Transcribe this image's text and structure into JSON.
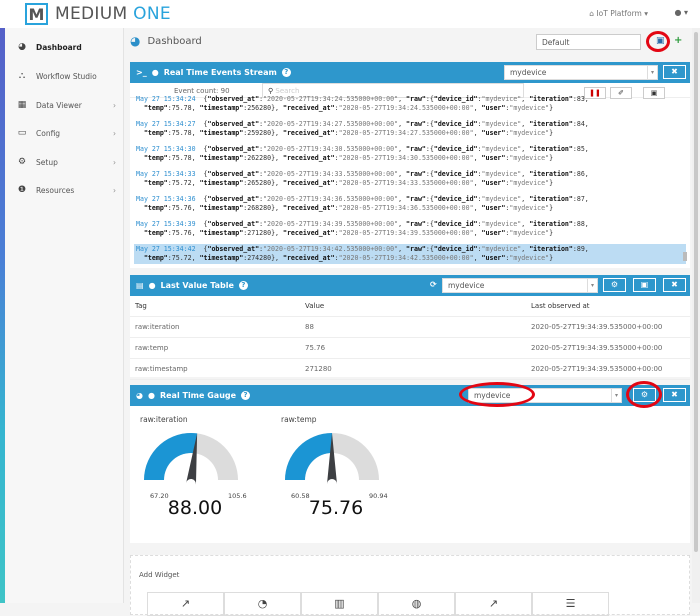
{
  "brand": {
    "logo_letter": "M",
    "name_a": "MEDIUM",
    "name_b": "ONE"
  },
  "topbar": {
    "platform": "IoT Platform",
    "platform_caret": "▾",
    "user_icon": "user-icon",
    "user_caret": "▾"
  },
  "sidebar": {
    "items": [
      {
        "label": "Dashboard",
        "icon": "dashboard-icon",
        "glyph": "◕",
        "chevron": ""
      },
      {
        "label": "Workflow Studio",
        "icon": "sitemap-icon",
        "glyph": "⛬",
        "chevron": ""
      },
      {
        "label": "Data Viewer",
        "icon": "table-icon",
        "glyph": "▦",
        "chevron": "›"
      },
      {
        "label": "Config",
        "icon": "monitor-icon",
        "glyph": "▭",
        "chevron": "›"
      },
      {
        "label": "Setup",
        "icon": "gears-icon",
        "glyph": "⚙",
        "chevron": "›"
      },
      {
        "label": "Resources",
        "icon": "info-icon",
        "glyph": "❶",
        "chevron": "›"
      }
    ]
  },
  "header": {
    "title": "Dashboard",
    "dashboard_select": "Default",
    "save_icon": "💾",
    "add_icon": "+"
  },
  "events_panel": {
    "title": "Real Time Events Stream",
    "device": "mydevice",
    "close": "✖",
    "event_count": "Event count: 90",
    "search_placeholder": "Search",
    "pause": "❚❚",
    "clear": "✐",
    "save": "▣",
    "events": [
      {
        "ts": "May 27 15:34:24",
        "obs": "2020-05-27T19:34:24.535000+00:00",
        "iter": "83",
        "temp": "75.78",
        "stamp": "256280",
        "rec": "2020-05-27T19:34:24.535000+00:00"
      },
      {
        "ts": "May 27 15:34:27",
        "obs": "2020-05-27T19:34:27.535000+00:00",
        "iter": "84",
        "temp": "75.78",
        "stamp": "259280",
        "rec": "2020-05-27T19:34:27.535000+00:00"
      },
      {
        "ts": "May 27 15:34:30",
        "obs": "2020-05-27T19:34:30.535000+00:00",
        "iter": "85",
        "temp": "75.78",
        "stamp": "262280",
        "rec": "2020-05-27T19:34:30.535000+00:00"
      },
      {
        "ts": "May 27 15:34:33",
        "obs": "2020-05-27T19:34:33.535000+00:00",
        "iter": "86",
        "temp": "75.72",
        "stamp": "265280",
        "rec": "2020-05-27T19:34:33.535000+00:00"
      },
      {
        "ts": "May 27 15:34:36",
        "obs": "2020-05-27T19:34:36.535000+00:00",
        "iter": "87",
        "temp": "75.76",
        "stamp": "268280",
        "rec": "2020-05-27T19:34:36.535000+00:00"
      },
      {
        "ts": "May 27 15:34:39",
        "obs": "2020-05-27T19:34:39.535000+00:00",
        "iter": "88",
        "temp": "75.76",
        "stamp": "271280",
        "rec": "2020-05-27T19:34:39.535000+00:00"
      },
      {
        "ts": "May 27 15:34:42",
        "obs": "2020-05-27T19:34:42.535000+00:00",
        "iter": "89",
        "temp": "75.72",
        "stamp": "274280",
        "rec": "2020-05-27T19:34:42.535000+00:00"
      }
    ],
    "device_id": "mydevice",
    "user": "mydevice"
  },
  "table_panel": {
    "title": "Last Value Table",
    "device": "mydevice",
    "headers": [
      "Tag",
      "Value",
      "Last observed at"
    ],
    "rows": [
      [
        "raw:iteration",
        "88",
        "2020-05-27T19:34:39.535000+00:00"
      ],
      [
        "raw:temp",
        "75.76",
        "2020-05-27T19:34:39.535000+00:00"
      ],
      [
        "raw:timestamp",
        "271280",
        "2020-05-27T19:34:39.535000+00:00"
      ]
    ]
  },
  "gauge_panel": {
    "title": "Real Time Gauge",
    "device": "mydevice",
    "gauges": [
      {
        "label": "raw:iteration",
        "min": "67.20",
        "max": "105.6",
        "value": "88.00"
      },
      {
        "label": "raw:temp",
        "min": "60.58",
        "max": "90.94",
        "value": "75.76"
      }
    ]
  },
  "add_widget": {
    "title": "Add Widget",
    "icons": [
      "line-chart-icon",
      "pie-chart-icon",
      "bar-chart-icon",
      "globe-icon",
      "line-chart-icon",
      "list-icon"
    ]
  },
  "colors": {
    "accent": "#2e97cc",
    "gauge_fill": "#1b95d4",
    "gauge_bg": "#dcdcdc",
    "annotation": "#e30613"
  }
}
